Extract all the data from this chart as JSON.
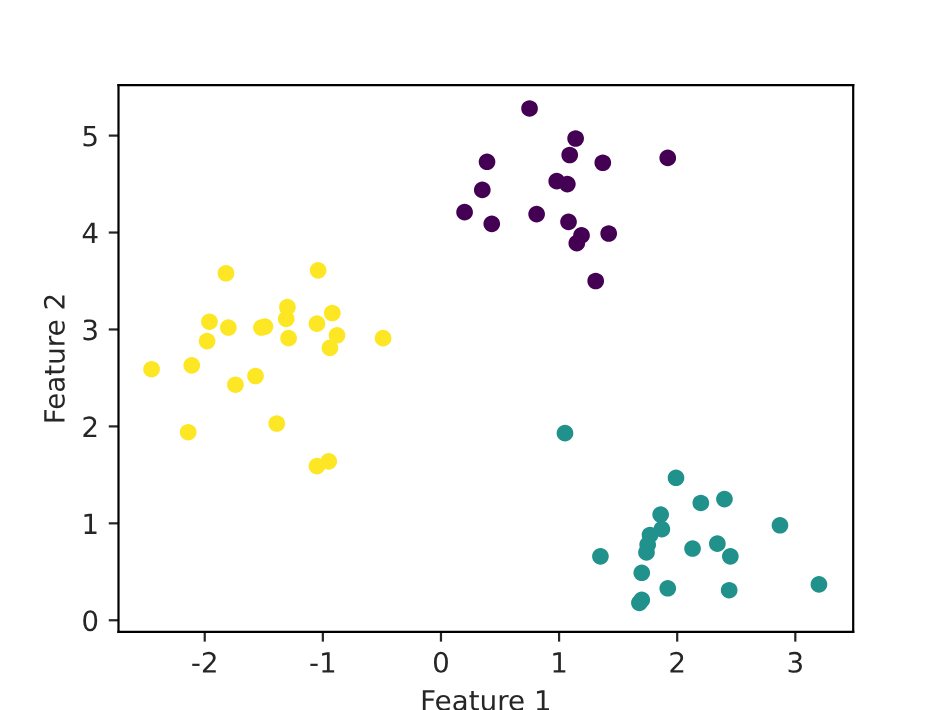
{
  "chart_data": {
    "type": "scatter",
    "xlabel": "Feature 1",
    "ylabel": "Feature 2",
    "xlim": [
      -2.73,
      3.49
    ],
    "ylim": [
      -0.12,
      5.52
    ],
    "xticks": [
      -2,
      -1,
      0,
      1,
      2,
      3
    ],
    "yticks": [
      0,
      1,
      2,
      3,
      4,
      5
    ],
    "grid": false,
    "marker": "circle",
    "series": [
      {
        "color": "#440154",
        "x": [
          0.75,
          1.14,
          1.09,
          1.37,
          1.92,
          0.39,
          0.35,
          0.2,
          0.43,
          0.81,
          0.98,
          1.07,
          1.08,
          1.19,
          1.15,
          1.42,
          1.31
        ],
        "values": [
          5.28,
          4.97,
          4.8,
          4.72,
          4.77,
          4.73,
          4.44,
          4.21,
          4.09,
          4.19,
          4.53,
          4.5,
          4.11,
          3.97,
          3.89,
          3.99,
          3.5
        ]
      },
      {
        "color": "#21918c",
        "x": [
          1.05,
          1.99,
          2.2,
          2.4,
          1.86,
          1.87,
          1.77,
          1.75,
          1.74,
          1.35,
          2.13,
          2.34,
          2.45,
          2.87,
          1.7,
          1.92,
          2.44,
          3.2,
          1.68,
          1.7
        ],
        "values": [
          1.93,
          1.47,
          1.21,
          1.25,
          1.09,
          0.94,
          0.88,
          0.78,
          0.7,
          0.66,
          0.74,
          0.79,
          0.66,
          0.98,
          0.49,
          0.33,
          0.31,
          0.37,
          0.18,
          0.21
        ]
      },
      {
        "color": "#fde725",
        "x": [
          -2.45,
          -2.11,
          -2.14,
          -1.74,
          -1.57,
          -1.39,
          -1.98,
          -1.96,
          -1.8,
          -1.82,
          -1.52,
          -1.49,
          -1.3,
          -1.31,
          -1.29,
          -1.05,
          -1.04,
          -0.92,
          -0.88,
          -0.94,
          -0.49,
          -1.05,
          -0.95
        ],
        "values": [
          2.59,
          2.63,
          1.94,
          2.43,
          2.52,
          2.03,
          2.88,
          3.08,
          3.02,
          3.58,
          3.02,
          3.03,
          3.23,
          3.11,
          2.91,
          3.06,
          3.61,
          3.17,
          2.94,
          2.81,
          2.91,
          1.59,
          1.64
        ]
      }
    ]
  }
}
